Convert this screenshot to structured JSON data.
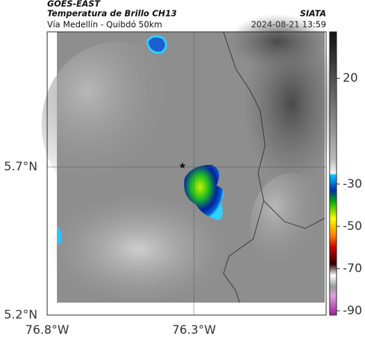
{
  "header": {
    "source": "GOES-EAST",
    "title": "Temperatura de Brillo CH13",
    "brand": "SIATA",
    "subtitle": "Vía Medellín - Quibdó 50km",
    "timestamp": "2024-08-21 13:59"
  },
  "map": {
    "lon_lim": [
      -76.8,
      -75.85
    ],
    "lat_lim": [
      5.2,
      6.156
    ],
    "lon_ticks": [
      {
        "value": -76.8,
        "label": "76.8°W"
      },
      {
        "value": -76.3,
        "label": "76.3°W"
      }
    ],
    "lat_ticks": [
      {
        "value": 5.7,
        "label": "5.7°N"
      },
      {
        "value": 5.2,
        "label": "5.2°N"
      }
    ]
  },
  "colorbar": {
    "lim": [
      -92,
      42
    ],
    "ticks": [
      20,
      -30,
      -50,
      -70,
      -90
    ]
  }
}
